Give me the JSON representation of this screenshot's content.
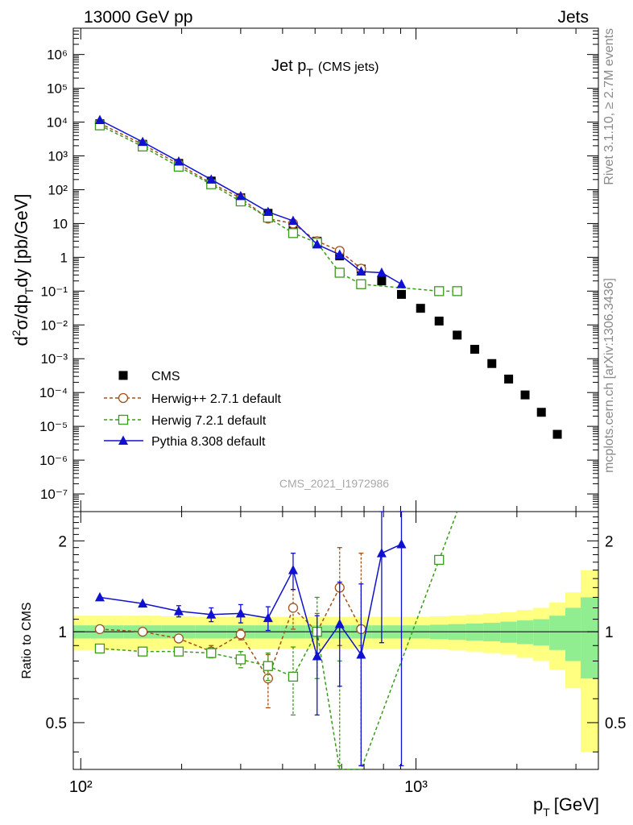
{
  "header": {
    "left": "13000 GeV pp",
    "right": "Jets"
  },
  "side_text": {
    "top": "Rivet 3.1.10, ≥ 2.7M events",
    "bottom": "mcplots.cern.ch [arXiv:1306.3436]"
  },
  "watermark": "CMS_2021_I1972986",
  "chart_data": {
    "type": "scatter",
    "title": "Jet p_T (CMS jets)",
    "title_parts": {
      "main": "Jet p",
      "sub": "T",
      "extra": "(CMS jets)"
    },
    "xlabel": "p_T [GeV]",
    "xlabel_parts": {
      "main": "p",
      "sub": "T",
      "unit": "[GeV]"
    },
    "ylabel": "d²σ/dp_T dy [pb/GeV]",
    "ratio_ylabel": "Ratio to CMS",
    "x_scale": "log",
    "y_scale": "log",
    "xlim": [
      95,
      3500
    ],
    "ylim": [
      3e-08,
      6000000.0
    ],
    "ratio_ylim": [
      0.35,
      2.5
    ],
    "x_tick_labels": [
      "10²",
      "10³"
    ],
    "y_tick_labels": [
      "10⁻⁷",
      "10⁻⁶",
      "10⁻⁵",
      "10⁻⁴",
      "10⁻³",
      "10⁻²",
      "10⁻¹",
      "1",
      "10",
      "10²",
      "10³",
      "10⁴",
      "10⁵",
      "10⁶"
    ],
    "ratio_tick_labels": [
      "0.5",
      "1",
      "2"
    ],
    "legend_position": "bottom-left",
    "series": [
      {
        "name": "CMS",
        "color": "#000000",
        "marker": "square-filled",
        "line": "none",
        "x": [
          114,
          153,
          196,
          245,
          300,
          362,
          430,
          507,
          592,
          686,
          790,
          905,
          1032,
          1172,
          1327,
          1497,
          1684,
          1890,
          2116,
          2366,
          2640,
          2941,
          3273
        ],
        "y": [
          9000,
          2200,
          600,
          180,
          58,
          20,
          8.5,
          3.0,
          1.1,
          0.45,
          0.2,
          0.08,
          0.031,
          0.013,
          0.005,
          0.0019,
          0.00072,
          0.00025,
          8.5e-05,
          2.6e-05,
          5.8e-06,
          0,
          0
        ]
      },
      {
        "name": "Herwig++ 2.7.1 default",
        "color": "#a0521c",
        "marker": "circle-open",
        "line": "dashed",
        "x": [
          114,
          153,
          196,
          245,
          300,
          362,
          430,
          507,
          592,
          686
        ],
        "y": [
          9200,
          2200,
          570,
          155,
          57,
          14,
          10,
          3.0,
          1.55,
          0.46
        ],
        "ratio": [
          1.02,
          1.0,
          0.95,
          0.86,
          0.98,
          0.7,
          1.2,
          1.0,
          1.4,
          1.02
        ],
        "ratio_err": [
          0,
          0,
          0,
          0.04,
          0.04,
          0.14,
          0.18,
          0.15,
          0.5,
          0.8
        ]
      },
      {
        "name": "Herwig 7.2.1 default",
        "color": "#3a9a1a",
        "marker": "square-open",
        "line": "dashed",
        "x": [
          114,
          153,
          196,
          245,
          300,
          362,
          430,
          507,
          592,
          686,
          1172,
          1327
        ],
        "y": [
          8000,
          1900,
          480,
          145,
          45,
          15,
          5.2,
          2.7,
          0.35,
          0.16,
          0.1,
          0.1
        ],
        "ratio": [
          0.88,
          0.86,
          0.86,
          0.85,
          0.81,
          0.77,
          0.71,
          1.0,
          0.3,
          0.3,
          1.73,
          2.8
        ],
        "ratio_err": [
          0,
          0,
          0,
          0.03,
          0.05,
          0.08,
          0.18,
          0.3,
          0.5,
          0.6,
          0,
          0
        ]
      },
      {
        "name": "Pythia 8.308 default",
        "color": "#1010d0",
        "marker": "triangle-filled",
        "line": "solid",
        "x": [
          114,
          153,
          196,
          245,
          300,
          362,
          430,
          507,
          592,
          686,
          790,
          905
        ],
        "y": [
          11500,
          2600,
          680,
          200,
          65,
          22,
          12,
          2.4,
          1.2,
          0.38,
          0.35,
          0.16
        ],
        "ratio": [
          1.3,
          1.24,
          1.17,
          1.14,
          1.15,
          1.11,
          1.6,
          0.83,
          1.06,
          0.84,
          1.82,
          1.95
        ],
        "ratio_err": [
          0,
          0,
          0.05,
          0.06,
          0.08,
          0.1,
          0.22,
          0.3,
          0.4,
          0.6,
          0.9,
          1.6
        ]
      }
    ]
  }
}
